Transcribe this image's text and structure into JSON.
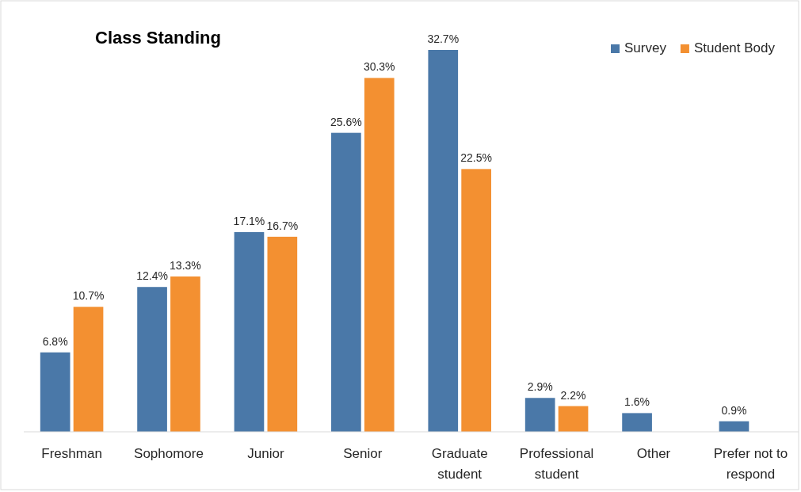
{
  "chart_data": {
    "type": "bar",
    "title": "Class Standing",
    "categories": [
      "Freshman",
      "Sophomore",
      "Junior",
      "Senior",
      "Graduate student",
      "Professional student",
      "Other",
      "Prefer not to respond"
    ],
    "series": [
      {
        "name": "Survey",
        "color": "#4a78a8",
        "values": [
          6.8,
          12.4,
          17.1,
          25.6,
          32.7,
          2.9,
          1.6,
          0.9
        ],
        "value_labels": [
          "6.8%",
          "12.4%",
          "17.1%",
          "25.6%",
          "32.7%",
          "2.9%",
          "1.6%",
          "0.9%"
        ]
      },
      {
        "name": "Student Body",
        "color": "#f39031",
        "values": [
          10.7,
          13.3,
          16.7,
          30.3,
          22.5,
          2.2,
          null,
          null
        ],
        "value_labels": [
          "10.7%",
          "13.3%",
          "16.7%",
          "30.3%",
          "22.5%",
          "2.2%",
          null,
          null
        ]
      }
    ],
    "legend": "top right"
  }
}
